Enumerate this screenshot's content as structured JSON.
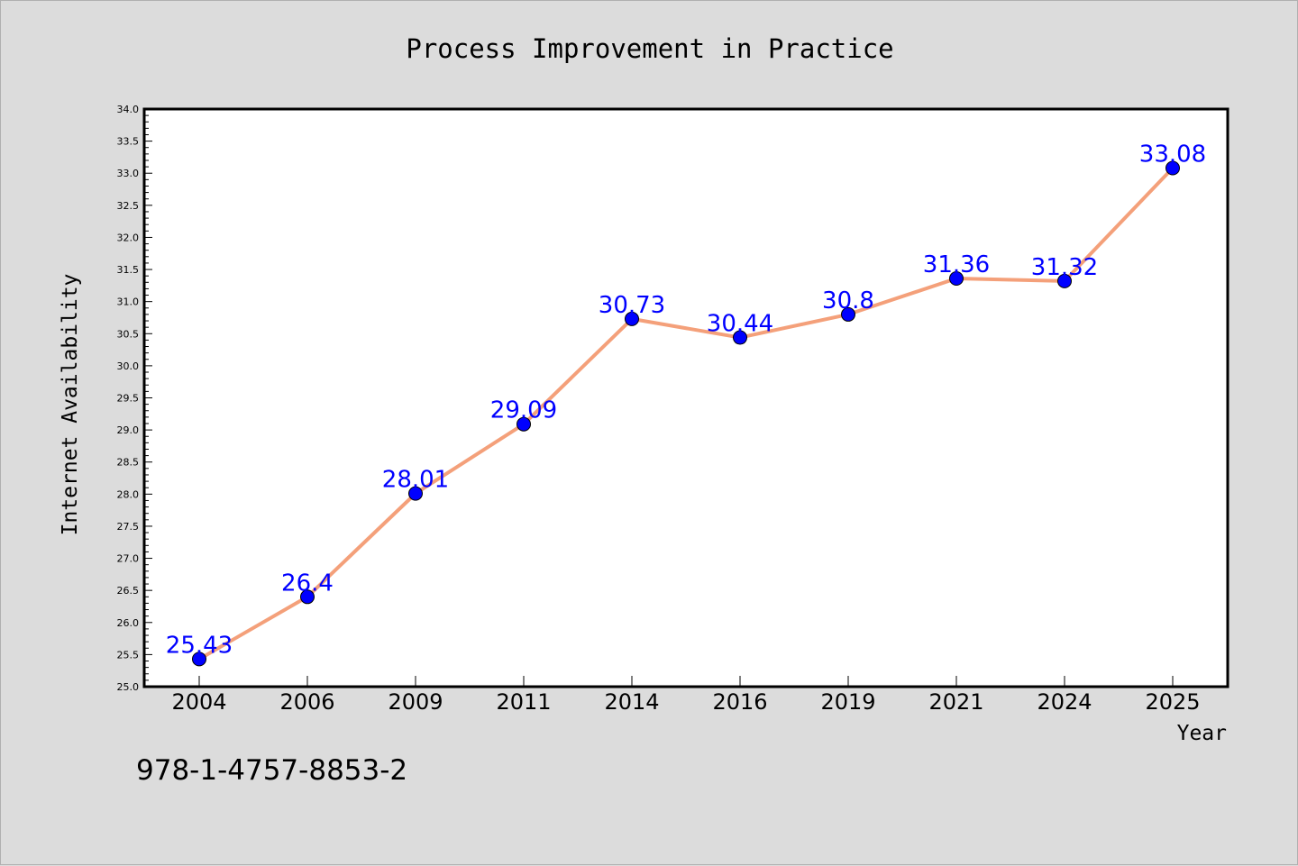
{
  "chart_data": {
    "type": "line",
    "title": "Process Improvement in Practice",
    "xlabel": "Year",
    "ylabel": "Internet Availability",
    "categories": [
      "2004",
      "2006",
      "2009",
      "2011",
      "2014",
      "2016",
      "2019",
      "2021",
      "2024",
      "2025"
    ],
    "values": [
      25.43,
      26.4,
      28.01,
      29.09,
      30.73,
      30.44,
      30.8,
      31.36,
      31.32,
      33.08
    ],
    "data_labels": [
      "25.43",
      "26.4",
      "28.01",
      "29.09",
      "30.73",
      "30.44",
      "30.8",
      "31.36",
      "31.32",
      "33.08"
    ],
    "ylim": [
      25.0,
      34.0
    ],
    "yticks": [
      "25.0",
      "25.5",
      "26.0",
      "26.5",
      "27.0",
      "27.5",
      "28.0",
      "28.5",
      "29.0",
      "29.5",
      "30.0",
      "30.5",
      "31.0",
      "31.5",
      "32.0",
      "32.5",
      "33.0",
      "33.5",
      "34.0"
    ],
    "grid": false,
    "legend": "none",
    "colors": {
      "line": "#f4a07a",
      "marker": "#0000ff",
      "label": "#0000ff",
      "background": "#dcdcdc",
      "plot_background": "#ffffff"
    }
  },
  "footer_text": "978-1-4757-8853-2"
}
